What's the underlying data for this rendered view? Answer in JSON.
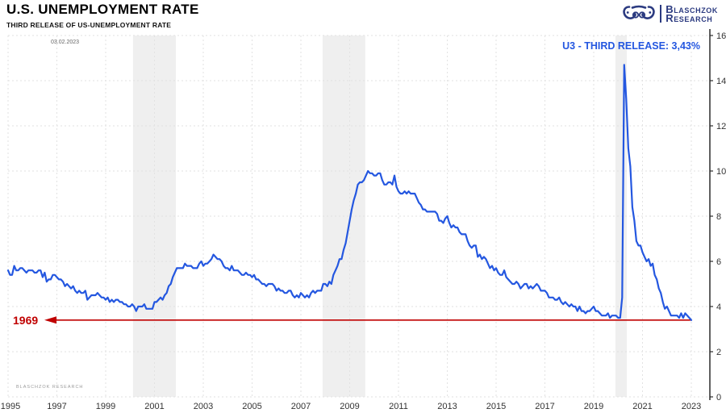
{
  "header": {
    "title": "U.S. UNEMPLOYMENT RATE",
    "subtitle": "THIRD RELEASE OF US-UNEMPLOYMENT RATE",
    "logo_line1": "Blaschzok",
    "logo_line2": "Research"
  },
  "annotations": {
    "date_label": "03.02.2023",
    "series_label": "U3 - THIRD RELEASE: 3,43%",
    "reference_label": "1969",
    "watermark": "BLASCHZOK RESEARCH"
  },
  "colors": {
    "line": "#2457e0",
    "series_label": "#2457e0",
    "reference": "#c00000",
    "recession_band": "#efefef",
    "grid": "#e2e2e2",
    "axis": "#2b2b2b",
    "tick_text": "#333333",
    "logo_navy": "#2b3a80"
  },
  "chart_data": {
    "type": "line",
    "title": "U.S. UNEMPLOYMENT RATE",
    "subtitle": "THIRD RELEASE OF US-UNEMPLOYMENT RATE",
    "xlabel": "",
    "ylabel": "",
    "xlim": [
      1995,
      2023.76
    ],
    "ylim": [
      0,
      16
    ],
    "x_ticks": [
      1995,
      1997,
      1999,
      2001,
      2003,
      2005,
      2007,
      2009,
      2011,
      2013,
      2015,
      2017,
      2019,
      2021,
      2023
    ],
    "y_ticks": [
      0,
      2,
      4,
      6,
      8,
      10,
      12,
      14,
      16
    ],
    "grid": "dashed",
    "legend_position": "none",
    "y_axis_side": "right",
    "reference_line": {
      "value": 3.4,
      "label": "1969"
    },
    "recession_bands": [
      [
        2000.12,
        2001.88
      ],
      [
        2007.89,
        2009.64
      ],
      [
        2019.89,
        2020.36
      ]
    ],
    "series": [
      {
        "name": "U3 unemployment rate, third release (%)",
        "start_year": 1995,
        "frequency": "monthly",
        "last_value_label": "3,43%",
        "values": [
          5.6,
          5.4,
          5.4,
          5.8,
          5.6,
          5.6,
          5.7,
          5.7,
          5.6,
          5.5,
          5.6,
          5.6,
          5.6,
          5.5,
          5.5,
          5.6,
          5.6,
          5.3,
          5.5,
          5.1,
          5.2,
          5.2,
          5.4,
          5.4,
          5.3,
          5.2,
          5.2,
          5.1,
          4.9,
          5.0,
          4.9,
          4.8,
          4.9,
          4.7,
          4.6,
          4.7,
          4.6,
          4.6,
          4.7,
          4.3,
          4.4,
          4.5,
          4.5,
          4.5,
          4.6,
          4.5,
          4.4,
          4.4,
          4.3,
          4.4,
          4.2,
          4.3,
          4.2,
          4.3,
          4.3,
          4.2,
          4.2,
          4.1,
          4.1,
          4.0,
          4.0,
          4.1,
          4.0,
          3.8,
          4.0,
          4.0,
          4.0,
          4.1,
          3.9,
          3.9,
          3.9,
          3.9,
          4.2,
          4.2,
          4.3,
          4.4,
          4.3,
          4.5,
          4.6,
          4.9,
          5.0,
          5.3,
          5.5,
          5.7,
          5.7,
          5.7,
          5.7,
          5.9,
          5.8,
          5.8,
          5.8,
          5.7,
          5.7,
          5.7,
          5.9,
          6.0,
          5.8,
          5.9,
          5.9,
          6.0,
          6.1,
          6.3,
          6.2,
          6.1,
          6.1,
          6.0,
          5.8,
          5.7,
          5.7,
          5.6,
          5.8,
          5.6,
          5.6,
          5.6,
          5.5,
          5.4,
          5.4,
          5.5,
          5.4,
          5.4,
          5.3,
          5.4,
          5.2,
          5.2,
          5.1,
          5.0,
          5.0,
          4.9,
          5.0,
          5.0,
          5.0,
          4.9,
          4.7,
          4.8,
          4.7,
          4.7,
          4.6,
          4.6,
          4.7,
          4.7,
          4.5,
          4.4,
          4.5,
          4.4,
          4.6,
          4.5,
          4.4,
          4.5,
          4.4,
          4.6,
          4.7,
          4.6,
          4.7,
          4.7,
          4.7,
          5.0,
          5.0,
          4.9,
          5.1,
          5.0,
          5.4,
          5.6,
          5.8,
          6.1,
          6.1,
          6.5,
          6.8,
          7.3,
          7.8,
          8.3,
          8.7,
          9.0,
          9.4,
          9.5,
          9.5,
          9.6,
          9.8,
          10.0,
          9.9,
          9.9,
          9.8,
          9.8,
          9.9,
          9.9,
          9.6,
          9.4,
          9.4,
          9.5,
          9.5,
          9.4,
          9.8,
          9.3,
          9.1,
          9.0,
          9.0,
          9.1,
          9.0,
          9.1,
          9.0,
          9.0,
          9.0,
          8.8,
          8.6,
          8.5,
          8.3,
          8.3,
          8.2,
          8.2,
          8.2,
          8.2,
          8.2,
          8.1,
          7.8,
          7.8,
          7.7,
          7.9,
          8.0,
          7.7,
          7.5,
          7.6,
          7.5,
          7.5,
          7.3,
          7.2,
          7.2,
          7.2,
          6.9,
          6.7,
          6.6,
          6.7,
          6.7,
          6.2,
          6.3,
          6.1,
          6.2,
          6.1,
          5.9,
          5.7,
          5.8,
          5.6,
          5.7,
          5.5,
          5.4,
          5.4,
          5.6,
          5.3,
          5.2,
          5.1,
          5.0,
          5.0,
          5.1,
          5.0,
          4.8,
          4.9,
          5.0,
          5.0,
          4.8,
          4.9,
          4.8,
          4.9,
          5.0,
          4.9,
          4.7,
          4.7,
          4.7,
          4.6,
          4.4,
          4.4,
          4.4,
          4.3,
          4.3,
          4.4,
          4.2,
          4.1,
          4.2,
          4.1,
          4.0,
          4.1,
          4.0,
          4.0,
          3.8,
          4.0,
          3.8,
          3.8,
          3.7,
          3.8,
          3.8,
          3.9,
          4.0,
          3.8,
          3.8,
          3.7,
          3.6,
          3.6,
          3.6,
          3.7,
          3.5,
          3.6,
          3.6,
          3.6,
          3.5,
          3.5,
          4.4,
          14.7,
          13.2,
          11.0,
          10.2,
          8.4,
          7.8,
          6.9,
          6.7,
          6.7,
          6.4,
          6.2,
          6.0,
          6.1,
          5.8,
          5.9,
          5.4,
          5.2,
          4.8,
          4.6,
          4.2,
          3.9,
          4.0,
          3.8,
          3.6,
          3.6,
          3.6,
          3.6,
          3.5,
          3.7,
          3.5,
          3.7,
          3.6,
          3.5,
          3.4
        ]
      }
    ]
  }
}
